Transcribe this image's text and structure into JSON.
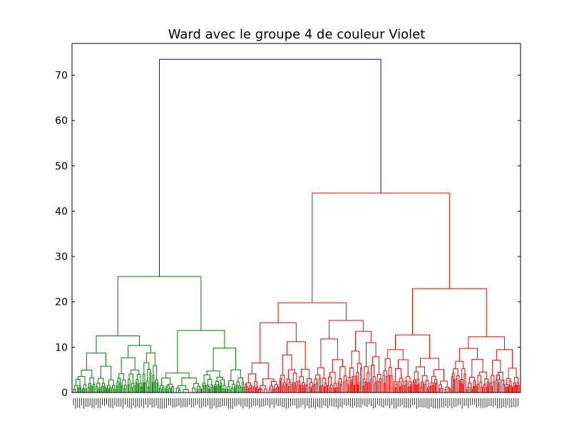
{
  "chart_data": {
    "type": "dendrogram",
    "title": "Ward avec le groupe 4 de couleur Violet",
    "xlabel": "",
    "ylabel": "",
    "ylim": [
      0,
      77
    ],
    "yticks": [
      0,
      10,
      20,
      30,
      40,
      50,
      60,
      70
    ],
    "grid": false,
    "colors": {
      "top": "#0000ff",
      "cluster_green": "#008000",
      "cluster_red": "#ff0000"
    },
    "leaf_labels_legible": false,
    "clusters": [
      {
        "name": "green",
        "color": "#008000",
        "height": 25.6,
        "children": [
          {
            "height": 12.5,
            "children": [
              {
                "height": 8.7
              },
              {
                "height": 10.4
              }
            ]
          },
          {
            "height": 13.7,
            "children": [
              {
                "height": 4.3
              },
              {
                "height": 9.8
              }
            ]
          }
        ]
      },
      {
        "name": "red",
        "color": "#ff0000",
        "height": 44.0,
        "children": [
          {
            "height": 19.8,
            "children": [
              {
                "height": 15.4,
                "children": [
                  {
                    "height": 6.5
                  },
                  {
                    "height": 11.2
                  }
                ]
              },
              {
                "height": 15.9,
                "children": [
                  {
                    "height": 11.8
                  },
                  {
                    "height": 13.5
                  }
                ]
              }
            ]
          },
          {
            "height": 22.9,
            "children": [
              {
                "height": 12.7
              },
              {
                "height": 12.3
              }
            ]
          }
        ]
      }
    ],
    "root_height": 73.5
  }
}
